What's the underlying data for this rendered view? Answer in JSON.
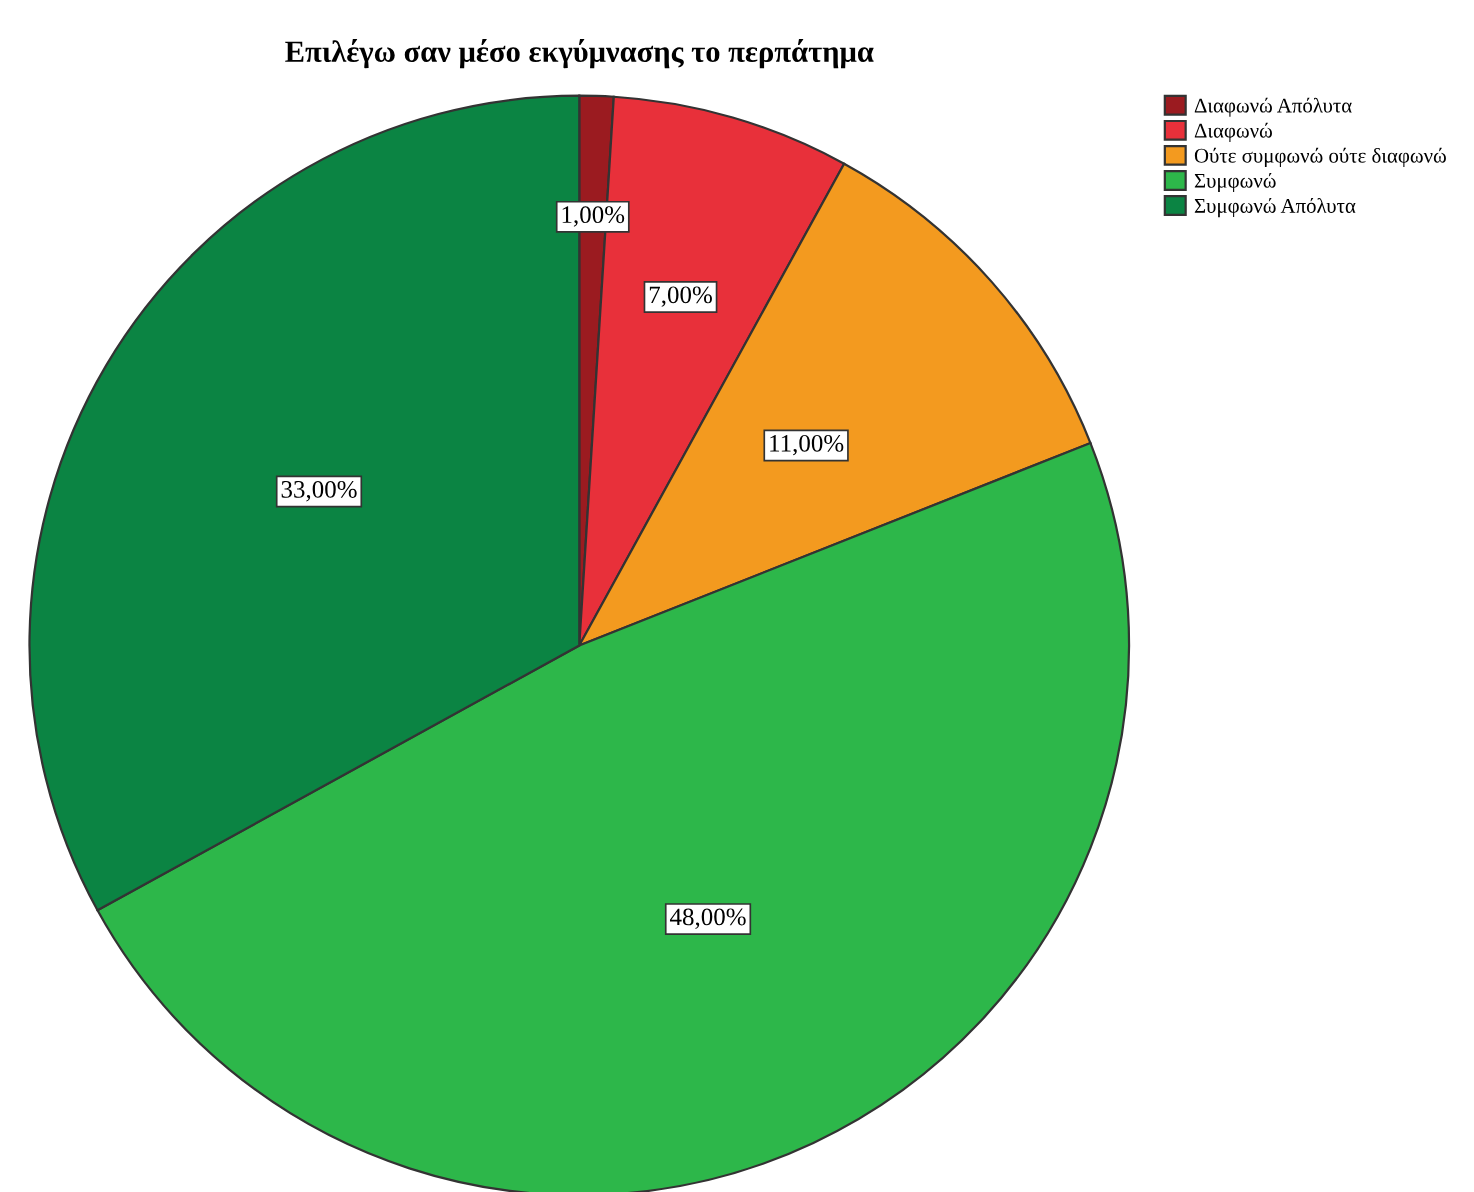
{
  "chart_data": {
    "type": "pie",
    "title": "Επιλέγω σαν μέσο εκγύμνασης το περπάτημα",
    "categories": [
      "Διαφωνώ Απόλυτα",
      "Διαφωνώ",
      "Ούτε συμφωνώ ούτε διαφωνώ",
      "Συμφωνώ",
      "Συμφωνώ Απόλυτα"
    ],
    "values": [
      1,
      7,
      11,
      48,
      33
    ],
    "colors": [
      "#9b1b20",
      "#e8303a",
      "#f39a1f",
      "#2db74a",
      "#0b8443"
    ],
    "value_labels": [
      "1,00%",
      "7,00%",
      "11,00%",
      "48,00%",
      "33,00%"
    ],
    "legend": "top right"
  }
}
